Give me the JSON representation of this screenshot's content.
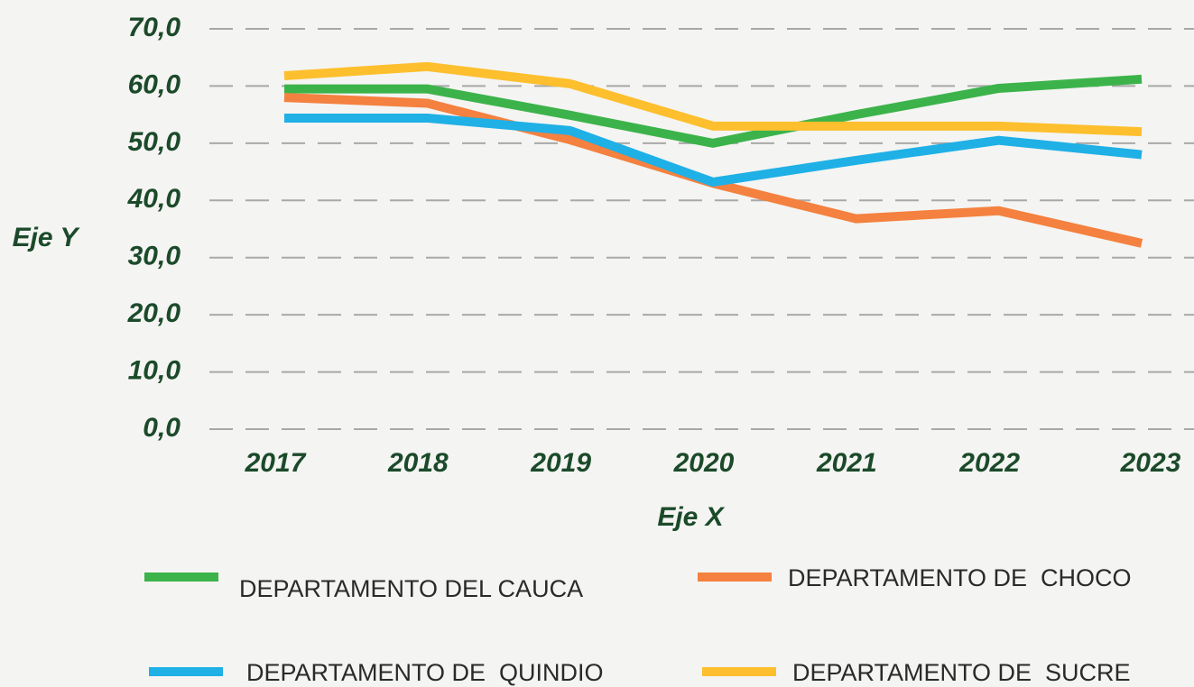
{
  "chart_data": {
    "type": "line",
    "x_label": "Eje X",
    "y_label": "Eje Y",
    "categories": [
      "2017",
      "2018",
      "2019",
      "2020",
      "2021",
      "2022",
      "2023"
    ],
    "series": [
      {
        "name": "DEPARTAMENTO DEL CAUCA",
        "color": "#3cb34a",
        "values": [
          59.5,
          59.5,
          54.9,
          50.0,
          55.0,
          59.6,
          61.2
        ]
      },
      {
        "name": "DEPARTAMENTO DE  CHOCO",
        "color": "#f4813f",
        "values": [
          58.0,
          57.0,
          50.6,
          43.0,
          36.8,
          38.2,
          32.5
        ]
      },
      {
        "name": "DEPARTAMENTO DE  QUINDIO",
        "color": "#1fb0e6",
        "values": [
          54.4,
          54.4,
          52.2,
          43.2,
          47.0,
          50.5,
          48.0
        ]
      },
      {
        "name": "DEPARTAMENTO DE  SUCRE",
        "color": "#fdbf2d",
        "values": [
          61.8,
          63.4,
          60.4,
          53.0,
          53.0,
          53.0,
          52.0
        ]
      }
    ],
    "ylim": [
      0,
      70
    ],
    "yticks": [
      {
        "value": 0,
        "label": "0,0"
      },
      {
        "value": 10,
        "label": "10,0"
      },
      {
        "value": 20,
        "label": "20,0"
      },
      {
        "value": 30,
        "label": "30,0"
      },
      {
        "value": 40,
        "label": "40,0"
      },
      {
        "value": 50,
        "label": "50,0"
      },
      {
        "value": 60,
        "label": "60,0"
      },
      {
        "value": 70,
        "label": "70,0"
      }
    ],
    "grid": true
  }
}
